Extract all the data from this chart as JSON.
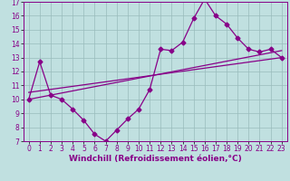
{
  "xlabel": "Windchill (Refroidissement éolien,°C)",
  "xlim": [
    -0.5,
    23.5
  ],
  "ylim": [
    7,
    17
  ],
  "xticks": [
    0,
    1,
    2,
    3,
    4,
    5,
    6,
    7,
    8,
    9,
    10,
    11,
    12,
    13,
    14,
    15,
    16,
    17,
    18,
    19,
    20,
    21,
    22,
    23
  ],
  "yticks": [
    7,
    8,
    9,
    10,
    11,
    12,
    13,
    14,
    15,
    16,
    17
  ],
  "bg_color": "#c0e0e0",
  "line_color": "#880088",
  "grid_color": "#99bbbb",
  "line1_x": [
    0,
    1,
    2,
    3,
    4,
    5,
    6,
    7,
    8,
    9,
    10,
    11,
    12,
    13,
    14,
    15,
    16,
    17,
    18,
    19,
    20,
    21,
    22,
    23
  ],
  "line1_y": [
    10.0,
    12.7,
    10.3,
    10.0,
    9.3,
    8.5,
    7.5,
    7.0,
    7.8,
    8.6,
    9.3,
    10.7,
    13.6,
    13.5,
    14.1,
    15.8,
    17.2,
    16.0,
    15.4,
    14.4,
    13.6,
    13.4,
    13.6,
    13.0
  ],
  "line2_x": [
    0,
    23
  ],
  "line2_y": [
    10.5,
    13.0
  ],
  "line3_x": [
    0,
    23
  ],
  "line3_y": [
    10.0,
    13.5
  ],
  "marker": "D",
  "marker_size": 2.5,
  "linewidth": 0.9,
  "fontsize_label": 6.5,
  "fontsize_tick": 5.5
}
